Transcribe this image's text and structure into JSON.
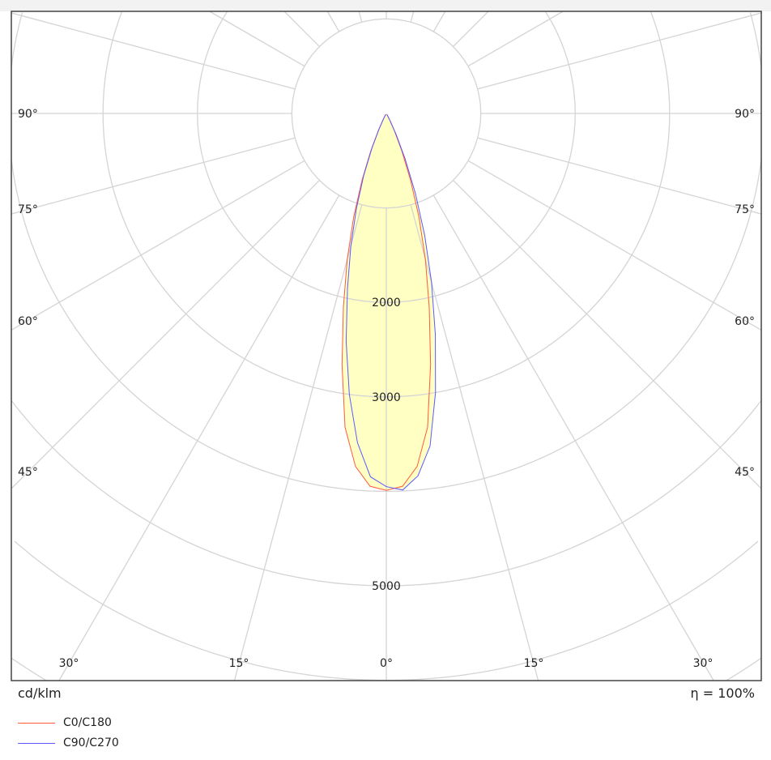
{
  "chart_data": {
    "type": "polar",
    "unit_label": "cd/klm",
    "efficiency_label": "η = 100%",
    "radial_tick_labels": [
      "2000",
      "3000",
      "5000"
    ],
    "radial_tick_values": [
      2000,
      3000,
      5000
    ],
    "radial_grid_step": 1000,
    "angle_labels_side": [
      "90°",
      "75°",
      "60°",
      "45°"
    ],
    "angle_labels_bottom": [
      "30°",
      "15°",
      "0°",
      "15°",
      "30°"
    ],
    "angles": [
      -30,
      -27.5,
      -25,
      -22.5,
      -20,
      -17.5,
      -15,
      -12.5,
      -10,
      -7.5,
      -5,
      -2.5,
      0,
      2.5,
      5,
      7.5,
      10,
      12.5,
      15,
      17.5,
      20,
      22.5,
      25,
      27.5,
      30
    ],
    "series": [
      {
        "name": "C0/C180",
        "color": "#ff5a3c",
        "values": [
          10,
          70,
          200,
          430,
          750,
          1150,
          1600,
          2100,
          2700,
          3350,
          3750,
          3950,
          3990,
          3950,
          3750,
          3350,
          2700,
          2100,
          1600,
          1150,
          750,
          430,
          200,
          70,
          10
        ]
      },
      {
        "name": "C90/C270",
        "color": "#5a5aff",
        "values": [
          10,
          60,
          180,
          400,
          700,
          1050,
          1450,
          1900,
          2450,
          3000,
          3500,
          3850,
          3950,
          3990,
          3850,
          3550,
          3000,
          2400,
          1850,
          1350,
          900,
          520,
          250,
          90,
          15
        ]
      }
    ],
    "fill_color": "#ffffc4",
    "grid": true
  }
}
